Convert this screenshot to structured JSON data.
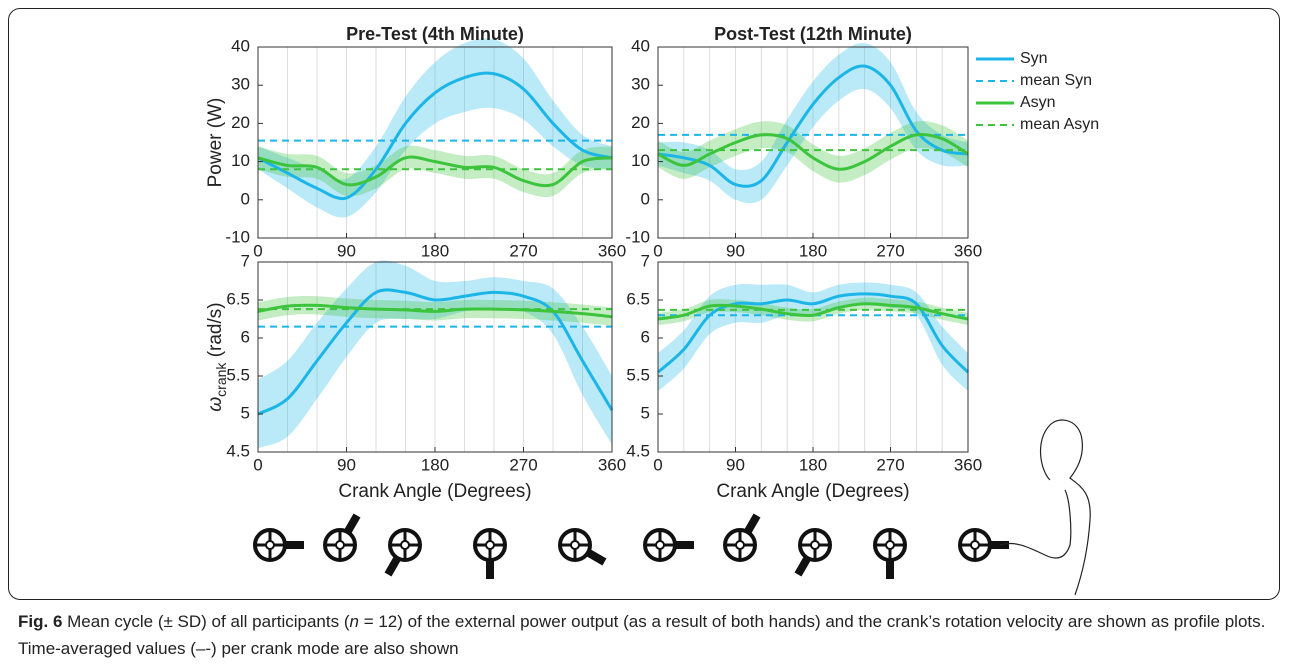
{
  "chart_data": [
    {
      "type": "line",
      "title": "Pre-Test (4th Minute)",
      "ylabel": "Power (W)",
      "x": [
        0,
        30,
        60,
        90,
        120,
        150,
        180,
        210,
        240,
        270,
        300,
        330,
        360
      ],
      "xlim": [
        0,
        360
      ],
      "xticks": [
        0,
        90,
        180,
        270,
        360
      ],
      "xgrid": [
        30,
        60,
        90,
        120,
        150,
        180,
        210,
        240,
        270,
        300,
        330
      ],
      "ylim": [
        -10,
        40
      ],
      "yticks": [
        -10,
        0,
        10,
        20,
        30,
        40
      ],
      "series": [
        {
          "name": "Syn",
          "color": "#1cb5e8",
          "values": [
            11,
            7,
            3,
            0.5,
            8,
            20,
            28,
            32,
            33,
            29,
            20,
            13,
            11
          ],
          "sd": [
            3,
            4,
            5,
            5,
            6,
            7,
            8,
            9,
            9,
            8,
            6,
            4,
            3
          ]
        },
        {
          "name": "mean Syn",
          "color": "#1cb5e8",
          "dashed": true,
          "value": 15.5
        },
        {
          "name": "Asyn",
          "color": "#3cc43c",
          "values": [
            11,
            9,
            8.5,
            4,
            6,
            11,
            10,
            8.5,
            8.5,
            5,
            4,
            10,
            11
          ],
          "sd": [
            3,
            3,
            3,
            3,
            3,
            3,
            3,
            3,
            3,
            3,
            3,
            3,
            3
          ]
        },
        {
          "name": "mean Asyn",
          "color": "#3cc43c",
          "dashed": true,
          "value": 8
        }
      ]
    },
    {
      "type": "line",
      "title": "Post-Test (12th Minute)",
      "x": [
        0,
        30,
        60,
        90,
        120,
        150,
        180,
        210,
        240,
        270,
        300,
        330,
        360
      ],
      "xlim": [
        0,
        360
      ],
      "xticks": [
        0,
        90,
        180,
        270,
        360
      ],
      "xgrid": [
        30,
        60,
        90,
        120,
        150,
        180,
        210,
        240,
        270,
        300,
        330
      ],
      "ylim": [
        -10,
        40
      ],
      "yticks": [
        -10,
        0,
        10,
        20,
        30,
        40
      ],
      "legend": "outside-right",
      "series": [
        {
          "name": "Syn",
          "color": "#1cb5e8",
          "values": [
            12,
            11,
            9,
            4,
            5,
            15,
            25,
            32,
            35,
            30,
            18,
            13,
            12
          ],
          "sd": [
            3,
            4,
            4,
            4,
            5,
            6,
            6,
            6,
            6,
            6,
            5,
            4,
            3
          ]
        },
        {
          "name": "mean Syn",
          "color": "#1cb5e8",
          "dashed": true,
          "value": 17
        },
        {
          "name": "Asyn",
          "color": "#3cc43c",
          "values": [
            12,
            9,
            12,
            15,
            17,
            16,
            11,
            8,
            10,
            14,
            17,
            16,
            12
          ],
          "sd": [
            3.5,
            3.5,
            3.5,
            3.5,
            3.5,
            3.5,
            3.5,
            3.5,
            3.5,
            3.5,
            3.5,
            3.5,
            3.5
          ]
        },
        {
          "name": "mean Asyn",
          "color": "#3cc43c",
          "dashed": true,
          "value": 13
        }
      ]
    },
    {
      "type": "line",
      "ylabel": "ω",
      "ylabel_sub": "crank",
      "ylabel_unit": "(rad/s)",
      "xlabel": "Crank Angle (Degrees)",
      "x": [
        0,
        30,
        60,
        90,
        120,
        150,
        180,
        210,
        240,
        270,
        300,
        330,
        360
      ],
      "xlim": [
        0,
        360
      ],
      "xticks": [
        0,
        90,
        180,
        270,
        360
      ],
      "xgrid": [
        30,
        60,
        90,
        120,
        150,
        180,
        210,
        240,
        270,
        300,
        330
      ],
      "ylim": [
        4.5,
        7
      ],
      "yticks": [
        4.5,
        5,
        5.5,
        6,
        6.5,
        7
      ],
      "series": [
        {
          "name": "Syn",
          "color": "#1cb5e8",
          "values": [
            5.0,
            5.2,
            5.7,
            6.2,
            6.6,
            6.6,
            6.5,
            6.55,
            6.6,
            6.55,
            6.35,
            5.7,
            5.05
          ],
          "sd": [
            0.45,
            0.5,
            0.5,
            0.45,
            0.4,
            0.35,
            0.25,
            0.2,
            0.2,
            0.2,
            0.3,
            0.45,
            0.45
          ]
        },
        {
          "name": "mean Syn",
          "color": "#1cb5e8",
          "dashed": true,
          "value": 6.15
        },
        {
          "name": "Asyn",
          "color": "#3cc43c",
          "values": [
            6.35,
            6.42,
            6.43,
            6.4,
            6.38,
            6.37,
            6.35,
            6.38,
            6.38,
            6.37,
            6.35,
            6.32,
            6.28
          ],
          "sd": [
            0.12,
            0.12,
            0.12,
            0.12,
            0.12,
            0.12,
            0.12,
            0.12,
            0.12,
            0.12,
            0.12,
            0.12,
            0.12
          ]
        },
        {
          "name": "mean Asyn",
          "color": "#3cc43c",
          "dashed": true,
          "value": 6.38
        }
      ]
    },
    {
      "type": "line",
      "xlabel": "Crank Angle (Degrees)",
      "x": [
        0,
        30,
        60,
        90,
        120,
        150,
        180,
        210,
        240,
        270,
        300,
        330,
        360
      ],
      "xlim": [
        0,
        360
      ],
      "xticks": [
        0,
        90,
        180,
        270,
        360
      ],
      "xgrid": [
        30,
        60,
        90,
        120,
        150,
        180,
        210,
        240,
        270,
        300,
        330
      ],
      "ylim": [
        4.5,
        7
      ],
      "yticks": [
        4.5,
        5,
        5.5,
        6,
        6.5,
        7
      ],
      "series": [
        {
          "name": "Syn",
          "color": "#1cb5e8",
          "values": [
            5.55,
            5.85,
            6.3,
            6.45,
            6.45,
            6.5,
            6.45,
            6.55,
            6.58,
            6.55,
            6.45,
            5.9,
            5.55
          ],
          "sd": [
            0.25,
            0.25,
            0.25,
            0.25,
            0.25,
            0.2,
            0.15,
            0.15,
            0.15,
            0.15,
            0.15,
            0.25,
            0.25
          ]
        },
        {
          "name": "mean Syn",
          "color": "#1cb5e8",
          "dashed": true,
          "value": 6.3
        },
        {
          "name": "Asyn",
          "color": "#3cc43c",
          "values": [
            6.25,
            6.3,
            6.42,
            6.42,
            6.38,
            6.32,
            6.3,
            6.4,
            6.45,
            6.43,
            6.4,
            6.32,
            6.25
          ],
          "sd": [
            0.08,
            0.08,
            0.08,
            0.08,
            0.08,
            0.08,
            0.08,
            0.08,
            0.08,
            0.08,
            0.08,
            0.08,
            0.08
          ]
        },
        {
          "name": "mean Asyn",
          "color": "#3cc43c",
          "dashed": true,
          "value": 6.37
        }
      ]
    }
  ],
  "caption": {
    "label": "Fig. 6",
    "text1": " Mean cycle (± SD) of all participants (",
    "n": "n",
    "text2": " = 12) of the external power output (as a result of both hands) and the crank’s rotation velocity are shown as profile plots. Time-averaged values (–-) per crank mode are also shown"
  }
}
